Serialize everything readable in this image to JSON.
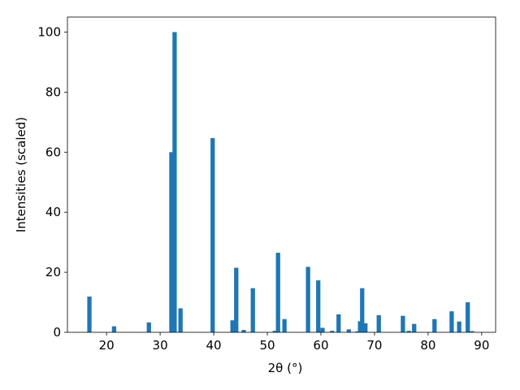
{
  "chart_data": {
    "type": "bar",
    "x_label": "2θ (°)",
    "y_label": "Intensities (scaled)",
    "x": [
      16.8,
      21.4,
      27.9,
      32.1,
      32.7,
      33.8,
      39.8,
      43.5,
      44.2,
      45.6,
      47.3,
      51.4,
      52.0,
      53.2,
      57.6,
      59.5,
      60.3,
      62.1,
      63.3,
      65.2,
      66.8,
      67.3,
      67.7,
      68.3,
      70.8,
      75.3,
      76.4,
      77.4,
      81.2,
      84.4,
      85.8,
      87.4,
      88.2
    ],
    "values": [
      11.9,
      2,
      3.3,
      60,
      100,
      8,
      64.7,
      4,
      21.5,
      0.8,
      14.7,
      0.5,
      26.5,
      4.4,
      21.8,
      17.3,
      1.5,
      0.5,
      6,
      1,
      0.3,
      3.7,
      14.7,
      3,
      5.7,
      5.5,
      0.5,
      2.8,
      4.4,
      7,
      3.6,
      10,
      0.4
    ],
    "color": "#1f77b4",
    "xlim": [
      12.7,
      92.6
    ],
    "ylim": [
      0,
      105
    ],
    "xticks": [
      20,
      30,
      40,
      50,
      60,
      70,
      80,
      90
    ],
    "yticks": [
      0,
      20,
      40,
      60,
      80,
      100
    ],
    "grid": false
  }
}
